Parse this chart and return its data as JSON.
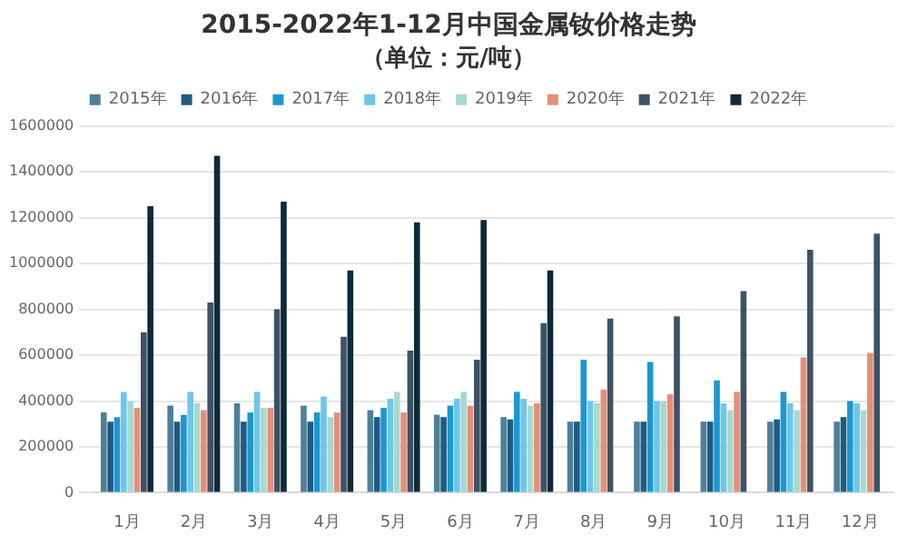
{
  "chart_data": {
    "type": "bar",
    "title": "2015-2022年1-12月中国金属钕价格走势",
    "subtitle": "（单位：元/吨）",
    "categories": [
      "1月",
      "2月",
      "3月",
      "4月",
      "5月",
      "6月",
      "7月",
      "8月",
      "9月",
      "10月",
      "11月",
      "12月"
    ],
    "series": [
      {
        "name": "2015年",
        "color": "#4f7f99",
        "values": [
          350000,
          380000,
          390000,
          380000,
          360000,
          340000,
          330000,
          310000,
          310000,
          310000,
          310000,
          310000
        ]
      },
      {
        "name": "2016年",
        "color": "#1f5b80",
        "values": [
          310000,
          310000,
          310000,
          310000,
          330000,
          330000,
          320000,
          310000,
          310000,
          310000,
          320000,
          330000
        ]
      },
      {
        "name": "2017年",
        "color": "#1c97d0",
        "values": [
          330000,
          340000,
          350000,
          350000,
          370000,
          380000,
          440000,
          580000,
          570000,
          490000,
          440000,
          400000
        ]
      },
      {
        "name": "2018年",
        "color": "#6ec6e8",
        "values": [
          440000,
          440000,
          440000,
          420000,
          410000,
          410000,
          410000,
          400000,
          400000,
          390000,
          390000,
          390000
        ]
      },
      {
        "name": "2019年",
        "color": "#a6d9d0",
        "values": [
          400000,
          390000,
          370000,
          330000,
          440000,
          440000,
          380000,
          390000,
          400000,
          360000,
          360000,
          360000
        ]
      },
      {
        "name": "2020年",
        "color": "#e58f78",
        "values": [
          370000,
          360000,
          370000,
          350000,
          350000,
          380000,
          390000,
          450000,
          430000,
          440000,
          590000,
          610000
        ]
      },
      {
        "name": "2021年",
        "color": "#3d5263",
        "values": [
          700000,
          830000,
          800000,
          680000,
          620000,
          580000,
          740000,
          760000,
          770000,
          880000,
          1060000,
          1130000
        ]
      },
      {
        "name": "2022年",
        "color": "#0e2a38",
        "values": [
          1250000,
          1470000,
          1270000,
          970000,
          1180000,
          1190000,
          970000,
          null,
          null,
          null,
          null,
          null
        ]
      }
    ],
    "ylim": [
      0,
      1600000
    ],
    "yticks": [
      0,
      200000,
      400000,
      600000,
      800000,
      1000000,
      1200000,
      1400000,
      1600000
    ],
    "grid": "y",
    "legend": "top"
  }
}
